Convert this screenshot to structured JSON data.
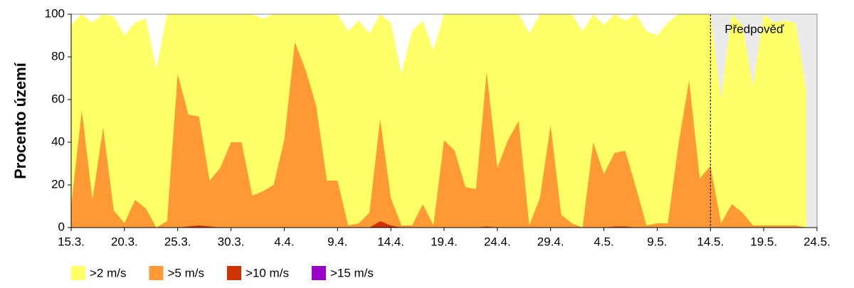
{
  "chart_data": {
    "type": "area",
    "ylabel": "Procento území",
    "annotation": "Předpověď",
    "forecast_start": 60,
    "x": [
      0,
      1,
      2,
      3,
      4,
      5,
      6,
      7,
      8,
      9,
      10,
      11,
      12,
      13,
      14,
      15,
      16,
      17,
      18,
      19,
      20,
      21,
      22,
      23,
      24,
      25,
      26,
      27,
      28,
      29,
      30,
      31,
      32,
      33,
      34,
      35,
      36,
      37,
      38,
      39,
      40,
      41,
      42,
      43,
      44,
      45,
      46,
      47,
      48,
      49,
      50,
      51,
      52,
      53,
      54,
      55,
      56,
      57,
      58,
      59,
      60,
      61,
      62,
      63,
      64,
      65,
      66,
      67,
      68,
      69
    ],
    "series": [
      {
        "name": ">2 m/s",
        "color": "#ffff66",
        "values": [
          95,
          100,
          96,
          100,
          99,
          90,
          96,
          98,
          74,
          100,
          100,
          100,
          100,
          100,
          100,
          100,
          100,
          100,
          98,
          100,
          100,
          100,
          100,
          100,
          100,
          100,
          92,
          97,
          91,
          100,
          96,
          72,
          92,
          97,
          83,
          100,
          100,
          100,
          100,
          100,
          100,
          100,
          100,
          91,
          100,
          100,
          100,
          100,
          92,
          100,
          95,
          100,
          97,
          100,
          92,
          90,
          96,
          100,
          100,
          100,
          100,
          60,
          100,
          95,
          66,
          100,
          96,
          97,
          96,
          64
        ]
      },
      {
        "name": ">5 m/s",
        "color": "#ff9933",
        "values": [
          10,
          55,
          13,
          47,
          8,
          2,
          13,
          9,
          0,
          3,
          72,
          53,
          52,
          22,
          28,
          40,
          40,
          15,
          17,
          20,
          41,
          87,
          74,
          57,
          22,
          22,
          1,
          2,
          7,
          51,
          14,
          1,
          1,
          11,
          1,
          41,
          36,
          19,
          18,
          73,
          28,
          41,
          50,
          1,
          14,
          48,
          6,
          2,
          0,
          40,
          25,
          35,
          36,
          19,
          1,
          2,
          2,
          39,
          69,
          23,
          29,
          2,
          11,
          7,
          1,
          1,
          1,
          1,
          1,
          0
        ]
      },
      {
        "name": ">10 m/s",
        "color": "#cc3300",
        "values": [
          0,
          0,
          0,
          0,
          0,
          0,
          0,
          0,
          0,
          0,
          0,
          0.5,
          1,
          0.5,
          0,
          0,
          0,
          0,
          0,
          0,
          0,
          0,
          0,
          0,
          0,
          0,
          0,
          0,
          0,
          3,
          1,
          0,
          0,
          0,
          0,
          0,
          0,
          0,
          0,
          0.5,
          0,
          0,
          0,
          0,
          0,
          0,
          0,
          0,
          0,
          0,
          0,
          0.5,
          0.5,
          0,
          0,
          0,
          0,
          0,
          0,
          0,
          0,
          0,
          0,
          0,
          0,
          0,
          0,
          0,
          0,
          0
        ]
      },
      {
        "name": ">15 m/s",
        "color": "#9900cc",
        "values": [
          0,
          0,
          0,
          0,
          0,
          0,
          0,
          0,
          0,
          0,
          0,
          0,
          0,
          0,
          0,
          0,
          0,
          0,
          0,
          0,
          0,
          0,
          0,
          0,
          0,
          0,
          0,
          0,
          0,
          0,
          0,
          0,
          0,
          0,
          0,
          0,
          0,
          0,
          0,
          0,
          0,
          0,
          0,
          0,
          0,
          0,
          0,
          0,
          0,
          0,
          0,
          0,
          0,
          0,
          0,
          0,
          0,
          0,
          0,
          0,
          0,
          0,
          0,
          0,
          0,
          0,
          0,
          0,
          0,
          0
        ]
      }
    ],
    "xlim": [
      0,
      70
    ],
    "xticks": [
      {
        "value": 0,
        "label": "15.3."
      },
      {
        "value": 5,
        "label": "20.3."
      },
      {
        "value": 10,
        "label": "25.3."
      },
      {
        "value": 15,
        "label": "30.3."
      },
      {
        "value": 20,
        "label": "4.4."
      },
      {
        "value": 25,
        "label": "9.4."
      },
      {
        "value": 30,
        "label": "14.4."
      },
      {
        "value": 35,
        "label": "19.4."
      },
      {
        "value": 40,
        "label": "24.4."
      },
      {
        "value": 45,
        "label": "29.4."
      },
      {
        "value": 50,
        "label": "4.5."
      },
      {
        "value": 55,
        "label": "9.5."
      },
      {
        "value": 60,
        "label": "14.5."
      },
      {
        "value": 65,
        "label": "19.5."
      },
      {
        "value": 70,
        "label": "24.5."
      }
    ],
    "ylim": [
      0,
      100
    ],
    "yticks": [
      0,
      20,
      40,
      60,
      80,
      100
    ],
    "grid": false
  }
}
